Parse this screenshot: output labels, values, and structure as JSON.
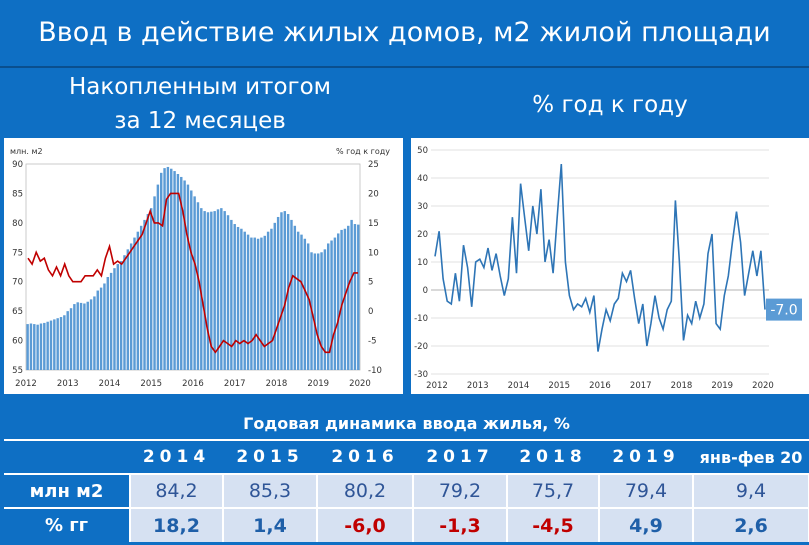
{
  "header": {
    "title": "Ввод в действие жилых домов, м2 жилой площади",
    "left_subtitle_1": "Накопленным итогом",
    "left_subtitle_2": "за 12 месяцев",
    "right_subtitle": "% год к году"
  },
  "colors": {
    "background": "#0e6fc4",
    "bars": "#5b9bd5",
    "red_line": "#c00000",
    "blue_line": "#2e75b6",
    "table_fill": "#d6e1f2",
    "negative": "#c00000"
  },
  "chart_data": [
    {
      "type": "bar",
      "ylabel": "млн. м2",
      "y2label": "% год к году",
      "ylim": [
        55,
        90
      ],
      "y2lim": [
        -10,
        25
      ],
      "x_ticks": [
        "2012",
        "2013",
        "2014",
        "2015",
        "2016",
        "2017",
        "2018",
        "2019",
        "2020"
      ],
      "y_ticks": [
        "55",
        "60",
        "65",
        "70",
        "75",
        "80",
        "85",
        "90"
      ],
      "y2_ticks": [
        "-10",
        "-5",
        "0",
        "5",
        "10",
        "15",
        "20",
        "25"
      ],
      "series": [
        {
          "values": [
            62.8,
            62.9,
            62.8,
            62.7,
            62.9,
            63.0,
            63.2,
            63.4,
            63.6,
            63.8,
            64.0,
            64.3,
            65.0,
            65.5,
            66.2,
            66.5,
            66.4,
            66.3,
            66.6,
            67.0,
            67.5,
            68.5,
            69.0,
            69.7,
            70.8,
            71.5,
            72.3,
            73.0,
            73.5,
            74.5,
            75.5,
            76.5,
            77.5,
            78.5,
            79.5,
            80.5,
            81.5,
            82.5,
            84.5,
            86.5,
            88.5,
            89.3,
            89.5,
            89.2,
            88.8,
            88.3,
            87.8,
            87.2,
            86.5,
            85.5,
            84.5,
            83.5,
            82.5,
            82.0,
            81.8,
            81.9,
            82.0,
            82.3,
            82.5,
            82.0,
            81.3,
            80.5,
            79.8,
            79.3,
            79.0,
            78.5,
            78.0,
            77.5,
            77.5,
            77.3,
            77.5,
            77.8,
            78.5,
            79.0,
            80.0,
            81.0,
            81.8,
            82.0,
            81.5,
            80.5,
            79.5,
            78.5,
            78.0,
            77.3,
            76.5,
            75.0,
            74.8,
            74.8,
            75.0,
            75.5,
            76.5,
            77.0,
            77.5,
            78.2,
            78.8,
            79.0,
            79.5,
            80.5,
            79.8,
            79.7
          ]
        },
        {
          "values": [
            9,
            8,
            10,
            8.5,
            9,
            7,
            6,
            7.5,
            6,
            8,
            6,
            5,
            5,
            5,
            6,
            6,
            6,
            7,
            6,
            9,
            11,
            8,
            8.5,
            8,
            9,
            10,
            11,
            12,
            13,
            15,
            17,
            15,
            15,
            14.5,
            19,
            20,
            20,
            20,
            17,
            13,
            10,
            8,
            5,
            1,
            -3,
            -6,
            -7,
            -6,
            -5,
            -5.5,
            -6,
            -5,
            -5.5,
            -5,
            -5.5,
            -5,
            -4,
            -5,
            -6,
            -5.5,
            -5,
            -3,
            -1,
            1,
            4,
            6,
            5.5,
            5,
            3.5,
            2,
            -1,
            -4,
            -6,
            -7,
            -7,
            -4,
            -2,
            1,
            3,
            5,
            6.5,
            6.5
          ]
        }
      ]
    },
    {
      "type": "line",
      "ylim": [
        -30,
        50
      ],
      "x_ticks": [
        "2012",
        "2013",
        "2014",
        "2015",
        "2016",
        "2017",
        "2018",
        "2019",
        "2020"
      ],
      "y_ticks": [
        "50",
        "40",
        "30",
        "20",
        "10",
        "0",
        "-10",
        "-20",
        "-30"
      ],
      "annotation": "-7.0",
      "series": [
        {
          "values": [
            12,
            21,
            4,
            -4,
            -5,
            6,
            -4,
            16,
            8,
            -6,
            10,
            11,
            8,
            15,
            7,
            13,
            5,
            -2,
            4,
            26,
            6,
            38,
            26,
            14,
            30,
            20,
            36,
            10,
            18,
            6,
            26,
            45,
            10,
            -2,
            -7,
            -5,
            -6,
            -3,
            -8,
            -2,
            -22,
            -14,
            -7,
            -11,
            -5,
            -3,
            6,
            3,
            7,
            -3,
            -12,
            -5,
            -20,
            -12,
            -2,
            -10,
            -14,
            -7,
            -4,
            32,
            10,
            -18,
            -9,
            -12,
            -4,
            -10,
            -5,
            13,
            20,
            -12,
            -14,
            -2,
            5,
            17,
            28,
            17,
            -2,
            6,
            14,
            5,
            14,
            -7
          ]
        }
      ]
    }
  ],
  "table": {
    "title": "Годовая динамика ввода жилья, %",
    "years": [
      "2014",
      "2015",
      "2016",
      "2017",
      "2018",
      "2019",
      "янв-фев 20"
    ],
    "row1_label": "млн м2",
    "row1": [
      "84,2",
      "85,3",
      "80,2",
      "79,2",
      "75,7",
      "79,4",
      "9,4"
    ],
    "row2_label": "% гг",
    "row2": [
      "18,2",
      "1,4",
      "-6,0",
      "-1,3",
      "-4,5",
      "4,9",
      "2,6"
    ]
  }
}
